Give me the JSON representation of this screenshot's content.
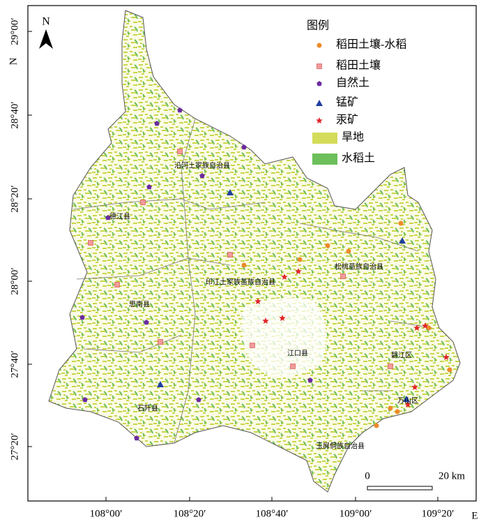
{
  "map": {
    "north_arrow": "N",
    "legend": {
      "title": "图例",
      "items": [
        "稻田土壤-水稻",
        "稻田土壤",
        "自然土",
        "锰矿",
        "汞矿",
        "旱地",
        "水稻土"
      ]
    },
    "counties": [
      "沿河土家族自治县",
      "德江县",
      "印江土家族苗族自治县",
      "松桃苗族自治县",
      "思南县",
      "江口县",
      "碧江区",
      "万山区",
      "石阡县",
      "玉屏侗族自治县"
    ],
    "lon_labels": [
      "108°00′",
      "108°20′",
      "108°40′",
      "109°00′",
      "109°20′"
    ],
    "lon_unit": "E",
    "lat_labels": [
      "29°00′",
      "28°40′",
      "28°20′",
      "28°00′",
      "27°40′",
      "27°20′"
    ],
    "lat_unit": "N",
    "scale_bar": {
      "start": "0",
      "end": "20 km"
    }
  }
}
